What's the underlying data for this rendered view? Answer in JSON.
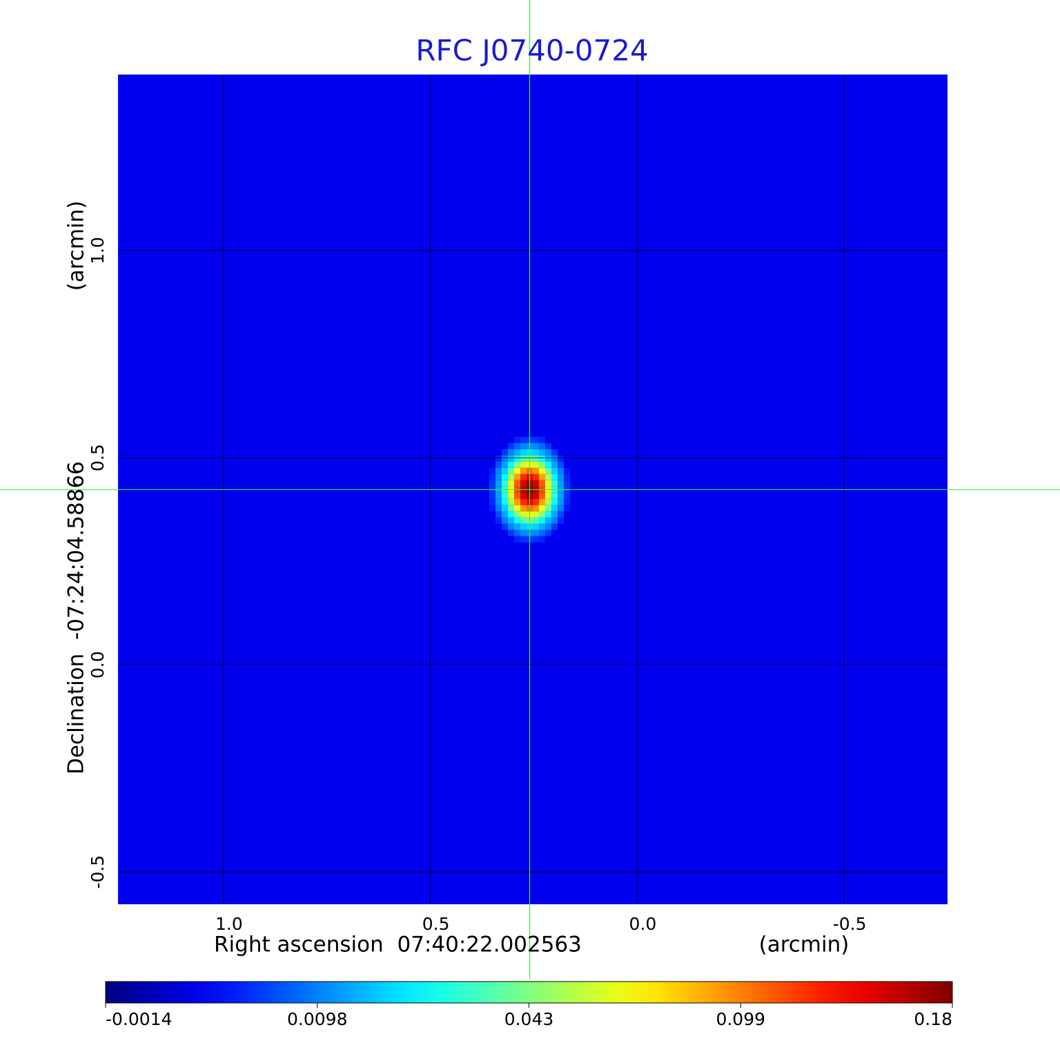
{
  "chart_data": {
    "type": "image",
    "title": "RFC J0740-0724",
    "title_color": "#1a1ad0",
    "xlabel": "Right ascension  07:40:22.002563",
    "xunit": "(arcmin)",
    "ylabel": "Declination  -07:24:04.58866",
    "yunit": "(arcmin)",
    "xlim": [
      1.255,
      -0.75
    ],
    "ylim": [
      -0.578,
      1.425
    ],
    "xticks": [
      {
        "value": 1,
        "label": "1.0"
      },
      0.5,
      {
        "value": 0,
        "label": "0.0"
      },
      -0.5
    ],
    "yticks": [
      -0.5,
      {
        "value": 0,
        "label": "0.0"
      },
      0.5,
      {
        "value": 1,
        "label": "1.0"
      }
    ],
    "grid": true,
    "grid_color": "#000000",
    "colormap": "jet",
    "colorbar_ticks": [
      -0.0014,
      0.0098,
      0.043,
      0.099,
      0.18
    ],
    "background": 0.0035,
    "source": {
      "x": 0.26,
      "y": 0.423,
      "peak": 0.18,
      "fwhm_x": 0.075,
      "fwhm_y": 0.1
    },
    "crosshair": {
      "x": 0.26,
      "y": 0.423,
      "color": "#33ee33"
    }
  }
}
